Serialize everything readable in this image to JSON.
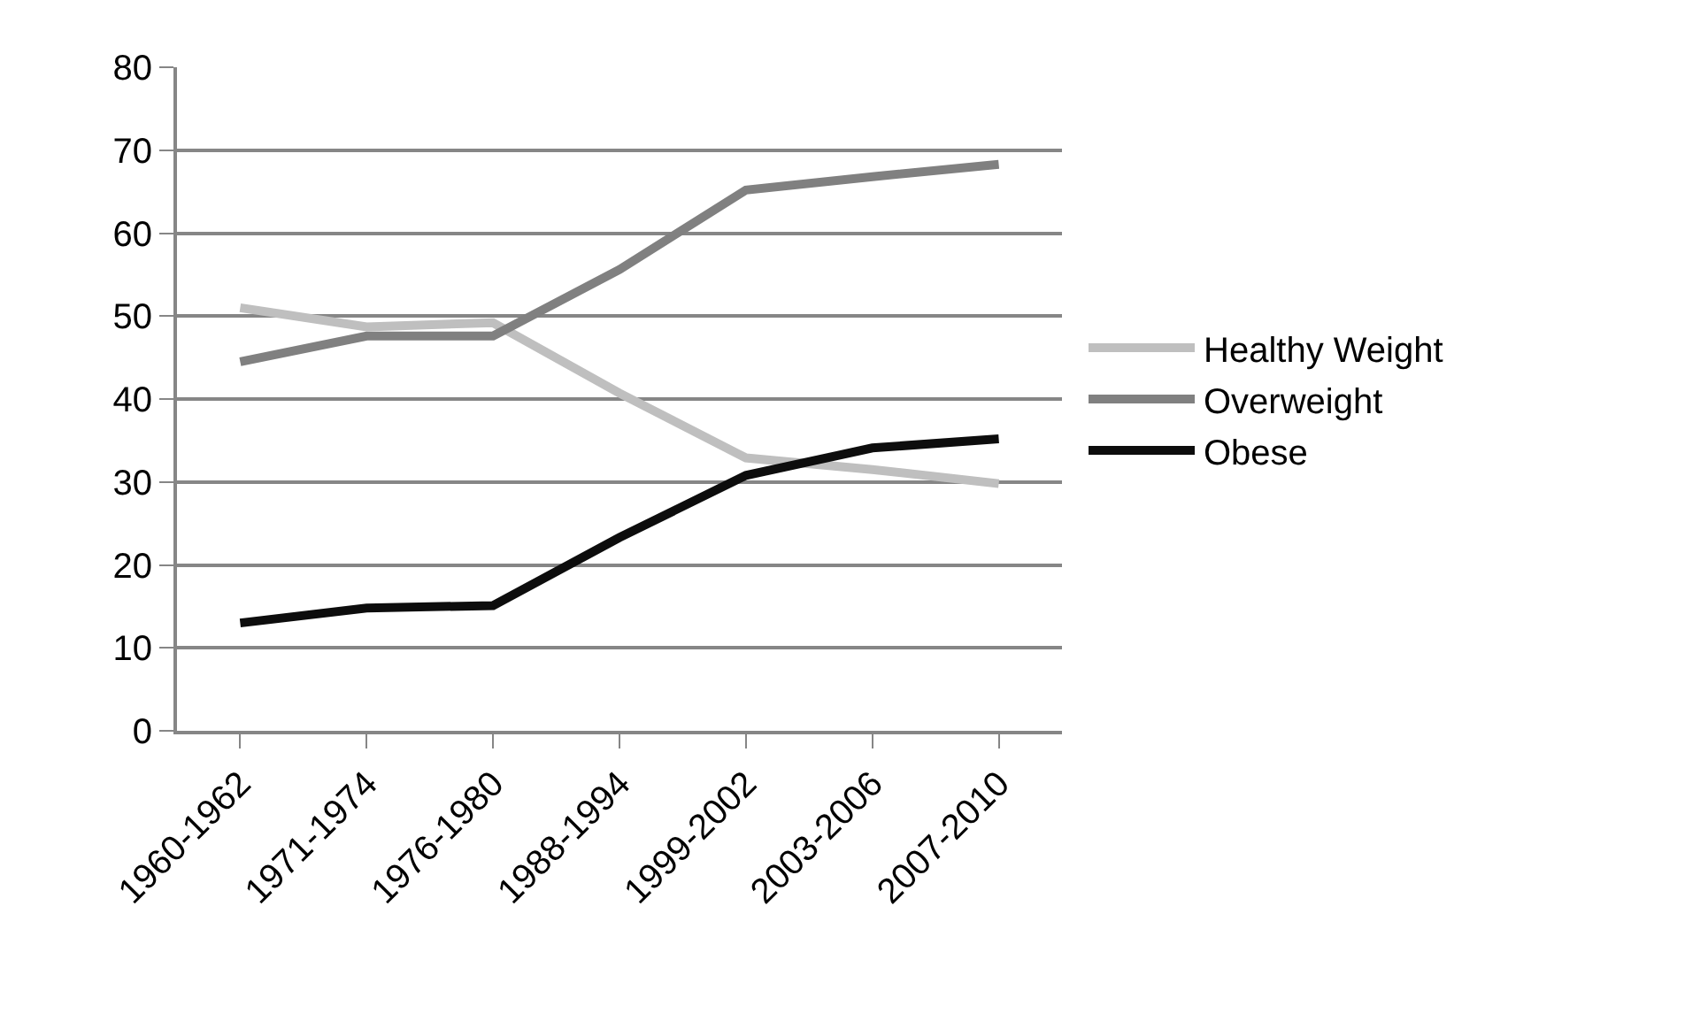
{
  "chart_data": {
    "type": "line",
    "categories": [
      "1960-1962",
      "1971-1974",
      "1976-1980",
      "1988-1994",
      "1999-2002",
      "2003-2006",
      "2007-2010"
    ],
    "series": [
      {
        "name": "Healthy Weight",
        "color": "#bfbfbf",
        "values": [
          51.0,
          48.7,
          49.2,
          40.7,
          32.9,
          31.5,
          29.8
        ]
      },
      {
        "name": "Overweight",
        "color": "#808080",
        "values": [
          44.5,
          47.6,
          47.6,
          55.6,
          65.2,
          66.8,
          68.3
        ]
      },
      {
        "name": "Obese",
        "color": "#0d0d0d",
        "values": [
          13.0,
          14.8,
          15.1,
          23.3,
          30.8,
          34.1,
          35.2
        ]
      }
    ],
    "ylim": [
      0,
      80
    ],
    "yticks": [
      0,
      10,
      20,
      30,
      40,
      50,
      60,
      70,
      80
    ],
    "grid": "y",
    "legend": "right",
    "marker": "none",
    "line_style": "solid"
  }
}
